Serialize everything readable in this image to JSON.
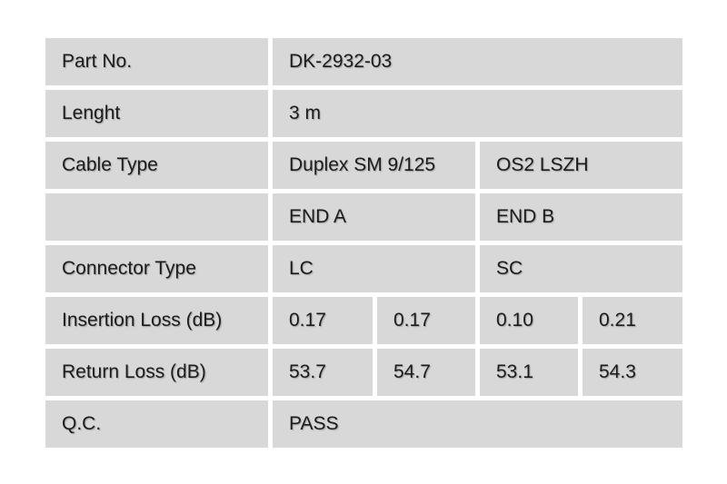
{
  "colors": {
    "cell_bg": "#d8d8d8",
    "page_bg": "#ffffff",
    "text": "#1c1c1c"
  },
  "table": {
    "rows": [
      {
        "label": "Part No.",
        "cells": [
          {
            "text": "DK-2932-03",
            "span": 4
          }
        ]
      },
      {
        "label": "Lenght",
        "cells": [
          {
            "text": "3 m",
            "span": 4
          }
        ]
      },
      {
        "label": "Cable Type",
        "cells": [
          {
            "text": "Duplex SM 9/125",
            "span": 2
          },
          {
            "text": "OS2 LSZH",
            "span": 2
          }
        ]
      },
      {
        "label": "",
        "cells": [
          {
            "text": "END A",
            "span": 2
          },
          {
            "text": "END B",
            "span": 2
          }
        ]
      },
      {
        "label": "Connector Type",
        "cells": [
          {
            "text": "LC",
            "span": 2
          },
          {
            "text": "SC",
            "span": 2
          }
        ]
      },
      {
        "label": "Insertion Loss (dB)",
        "cells": [
          {
            "text": "0.17"
          },
          {
            "text": "0.17"
          },
          {
            "text": "0.10"
          },
          {
            "text": "0.21"
          }
        ]
      },
      {
        "label": "Return Loss (dB)",
        "cells": [
          {
            "text": "53.7"
          },
          {
            "text": "54.7"
          },
          {
            "text": "53.1"
          },
          {
            "text": "54.3"
          }
        ]
      },
      {
        "label": "Q.C.",
        "cells": [
          {
            "text": "PASS",
            "span": 4
          }
        ]
      }
    ]
  }
}
